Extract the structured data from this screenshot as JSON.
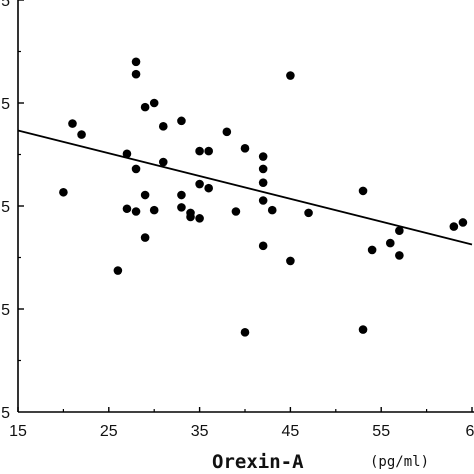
{
  "chart_data": {
    "type": "scatter",
    "xlabel": "Orexin-A",
    "xunit": "(pg/ml)",
    "ylabel": "",
    "xlim": [
      15,
      65
    ],
    "ylim": [
      0,
      30
    ],
    "x_ticks": [
      "15",
      "25",
      "35",
      "45",
      "55",
      "6"
    ],
    "y_tick_labels": [
      "5",
      "5",
      "5",
      "5"
    ],
    "grid": false,
    "points": [
      [
        20,
        16.0
      ],
      [
        21,
        21.0
      ],
      [
        22,
        20.2
      ],
      [
        26,
        10.3
      ],
      [
        27,
        18.8
      ],
      [
        27,
        14.8
      ],
      [
        28,
        25.5
      ],
      [
        28,
        24.6
      ],
      [
        28,
        17.7
      ],
      [
        28,
        14.6
      ],
      [
        29,
        22.2
      ],
      [
        29,
        15.8
      ],
      [
        29,
        12.7
      ],
      [
        30,
        22.5
      ],
      [
        30,
        14.7
      ],
      [
        31,
        20.8
      ],
      [
        31,
        18.2
      ],
      [
        33,
        21.2
      ],
      [
        33,
        15.8
      ],
      [
        33,
        14.9
      ],
      [
        34,
        14.5
      ],
      [
        34,
        14.2
      ],
      [
        35,
        19.0
      ],
      [
        35,
        16.6
      ],
      [
        35,
        14.1
      ],
      [
        36,
        19.0
      ],
      [
        36,
        16.3
      ],
      [
        38,
        20.4
      ],
      [
        39,
        14.6
      ],
      [
        40,
        19.2
      ],
      [
        40,
        5.8
      ],
      [
        42,
        18.6
      ],
      [
        42,
        17.7
      ],
      [
        42,
        16.7
      ],
      [
        42,
        15.4
      ],
      [
        42,
        12.1
      ],
      [
        43,
        14.7
      ],
      [
        45,
        24.5
      ],
      [
        45,
        11.0
      ],
      [
        47,
        14.5
      ],
      [
        53,
        16.1
      ],
      [
        53,
        6.0
      ],
      [
        54,
        11.8
      ],
      [
        56,
        12.3
      ],
      [
        57,
        13.2
      ],
      [
        57,
        11.4
      ],
      [
        63,
        13.5
      ],
      [
        64,
        13.8
      ]
    ],
    "regression_line": {
      "x": [
        15,
        65
      ],
      "y": [
        20.5,
        12.2
      ]
    },
    "colors": {
      "points": "#000000",
      "line": "#000000",
      "axes": "#000000"
    }
  }
}
